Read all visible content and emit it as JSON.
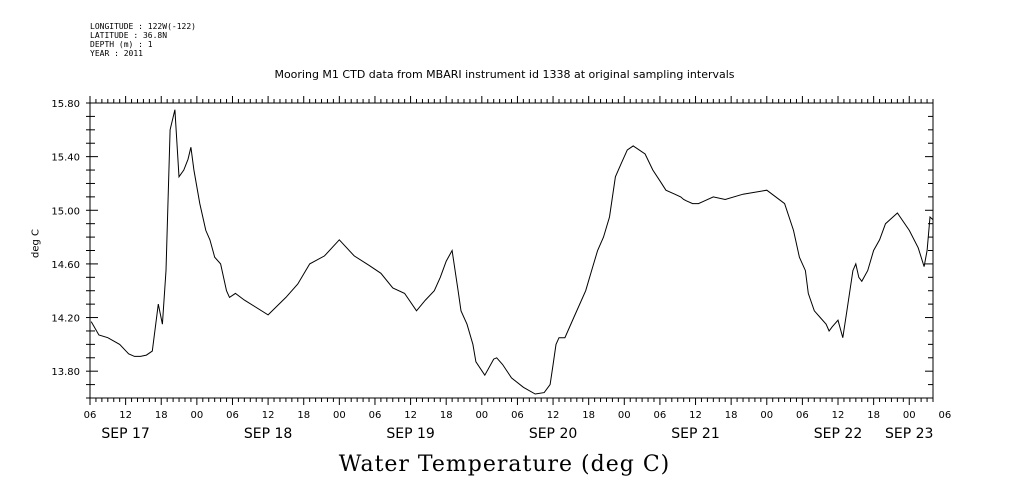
{
  "metadata": [
    "LONGITUDE : 122W(-122)",
    "LATITUDE : 36.8N",
    "DEPTH (m) : 1",
    "YEAR : 2011"
  ],
  "chart_data": {
    "type": "line",
    "title": "Mooring M1 CTD data from MBARI instrument id 1338 at original sampling intervals",
    "xlabel": "Water Temperature (deg C)",
    "ylabel": "deg C",
    "ylim": [
      13.6,
      15.8
    ],
    "xlim_hours": [
      6,
      148
    ],
    "y_ticks": [
      "13.80",
      "14.20",
      "14.60",
      "15.00",
      "15.40",
      "15.80"
    ],
    "x_tick_labels": [
      "06",
      "12",
      "18",
      "00",
      "06",
      "12",
      "18",
      "00",
      "06",
      "12",
      "18",
      "00",
      "06",
      "12",
      "18",
      "00",
      "06",
      "12",
      "18",
      "00",
      "06",
      "12",
      "18",
      "00",
      "06"
    ],
    "day_labels": [
      {
        "label": "SEP 17",
        "hour": 12
      },
      {
        "label": "SEP 18",
        "hour": 36
      },
      {
        "label": "SEP 19",
        "hour": 60
      },
      {
        "label": "SEP 20",
        "hour": 84
      },
      {
        "label": "SEP 21",
        "hour": 108
      },
      {
        "label": "SEP 22",
        "hour": 132
      },
      {
        "label": "SEP 23",
        "hour": 144
      }
    ],
    "grid": false,
    "series": [
      {
        "hours": [
          6.2,
          7.5,
          9,
          11,
          12.5,
          13.5,
          14.5,
          15.5,
          16.5,
          17.5,
          18.2,
          18.8,
          19.5,
          20.3,
          21.0,
          21.8,
          22.5,
          23.0,
          23.5,
          24.5,
          25.5,
          26.2,
          27.0,
          28.0,
          29.0,
          29.5,
          30.5,
          32.0,
          36.0,
          39.0,
          41.0,
          43.0,
          45.5,
          48.0,
          50.5,
          53.0,
          55.0,
          57.0,
          59.0,
          61.0,
          62.5,
          64.0,
          65.0,
          66.0,
          67.0,
          68.0,
          68.5,
          69.5,
          70.5,
          71.0,
          72.5,
          74.0,
          74.5,
          75.5,
          77.0,
          79.0,
          81.0,
          82.5,
          83.5,
          84.0,
          84.5,
          85.0,
          86.0,
          87.5,
          89.5,
          90.5,
          91.5,
          92.5,
          93.5,
          94.5,
          95.5,
          96.5,
          97.5,
          99.5,
          100.8,
          102.0,
          103.0,
          104.5,
          105.5,
          106.0,
          106.5,
          107.5,
          108.5,
          109.5,
          111.0,
          113.0,
          116.0,
          120.0,
          123.0,
          124.5,
          125.5,
          126.5,
          127.0,
          128.0,
          129.0,
          130.0,
          130.5,
          131.0,
          132.0,
          132.8,
          133.5,
          134.5,
          135.0,
          135.5,
          136.0,
          137.0,
          138.0,
          139.0,
          140.0,
          142.0,
          144.0,
          145.5,
          146.5,
          147.0,
          147.5,
          148.0
        ],
        "values": [
          14.17,
          14.07,
          14.05,
          14.0,
          13.93,
          13.91,
          13.91,
          13.92,
          13.95,
          14.3,
          14.15,
          14.55,
          15.6,
          15.75,
          15.25,
          15.3,
          15.38,
          15.47,
          15.3,
          15.05,
          14.85,
          14.78,
          14.65,
          14.6,
          14.4,
          14.35,
          14.38,
          14.33,
          14.22,
          14.35,
          14.45,
          14.6,
          14.66,
          14.78,
          14.66,
          14.59,
          14.53,
          14.42,
          14.38,
          14.25,
          14.33,
          14.4,
          14.5,
          14.62,
          14.7,
          14.4,
          14.25,
          14.15,
          14.0,
          13.87,
          13.77,
          13.89,
          13.9,
          13.85,
          13.75,
          13.68,
          13.63,
          13.64,
          13.7,
          13.85,
          14.0,
          14.05,
          14.05,
          14.2,
          14.4,
          14.55,
          14.7,
          14.8,
          14.95,
          15.25,
          15.35,
          15.45,
          15.48,
          15.42,
          15.3,
          15.22,
          15.15,
          15.12,
          15.1,
          15.08,
          15.07,
          15.05,
          15.05,
          15.07,
          15.1,
          15.08,
          15.12,
          15.15,
          15.05,
          14.85,
          14.65,
          14.55,
          14.38,
          14.25,
          14.2,
          14.15,
          14.1,
          14.13,
          14.18,
          14.05,
          14.25,
          14.55,
          14.6,
          14.5,
          14.47,
          14.55,
          14.7,
          14.78,
          14.9,
          14.98,
          14.85,
          14.72,
          14.58,
          14.7,
          14.95,
          14.93
        ]
      }
    ]
  }
}
